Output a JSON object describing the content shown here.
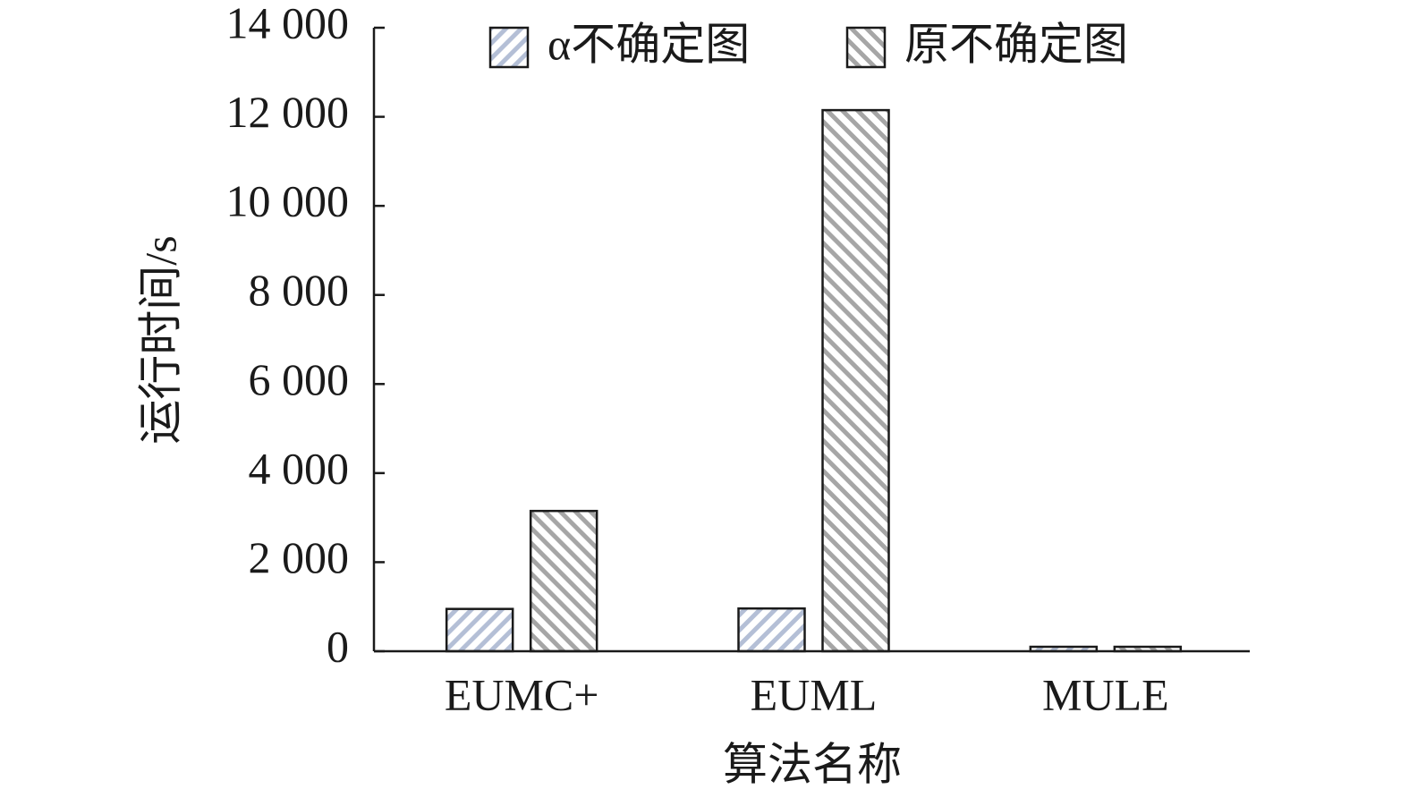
{
  "chart_data": {
    "type": "bar",
    "x_label": "算法名称",
    "y_label": "运行时间/s",
    "categories": [
      "EUMC+",
      "EUML",
      "MULE"
    ],
    "series": [
      {
        "name": "α不确定图",
        "color": "#b4bfd6",
        "values": [
          950,
          960,
          100
        ]
      },
      {
        "name": "原不确定图",
        "color": "#a6a6a6",
        "values": [
          3150,
          12150,
          100
        ]
      }
    ],
    "ylim": [
      0,
      14000
    ],
    "yticks": [
      0,
      {
        "value": 2000,
        "label": "2 000"
      },
      {
        "value": 4000,
        "label": "4 000"
      },
      {
        "value": 6000,
        "label": "6 000"
      },
      {
        "value": 8000,
        "label": "8 000"
      },
      {
        "value": 10000,
        "label": "10 000"
      },
      {
        "value": 12000,
        "label": "12 000"
      },
      {
        "value": 14000,
        "label": "14 000"
      }
    ],
    "grid": false,
    "legend": "top"
  }
}
